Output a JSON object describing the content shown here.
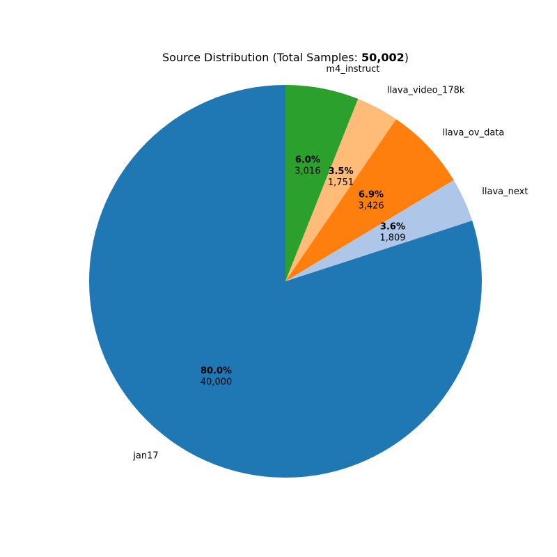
{
  "chart_data": {
    "type": "pie",
    "title_prefix": "Source Distribution (Total Samples: ",
    "title_total": "50,002",
    "title_suffix": ")",
    "start_angle_deg": 90,
    "direction": "clockwise",
    "slices": [
      {
        "label": "m4_instruct",
        "value": 3016,
        "percent": "6.0%",
        "count_label": "3,016",
        "color": "#2ca02c"
      },
      {
        "label": "llava_video_178k",
        "value": 1751,
        "percent": "3.5%",
        "count_label": "1,751",
        "color": "#ffbb78"
      },
      {
        "label": "llava_ov_data",
        "value": 3426,
        "percent": "6.9%",
        "count_label": "3,426",
        "color": "#ff7f0e"
      },
      {
        "label": "llava_next",
        "value": 1809,
        "percent": "3.6%",
        "count_label": "1,809",
        "color": "#aec7e8"
      },
      {
        "label": "jan17",
        "value": 40000,
        "percent": "80.0%",
        "count_label": "40,000",
        "color": "#1f77b4"
      }
    ]
  }
}
